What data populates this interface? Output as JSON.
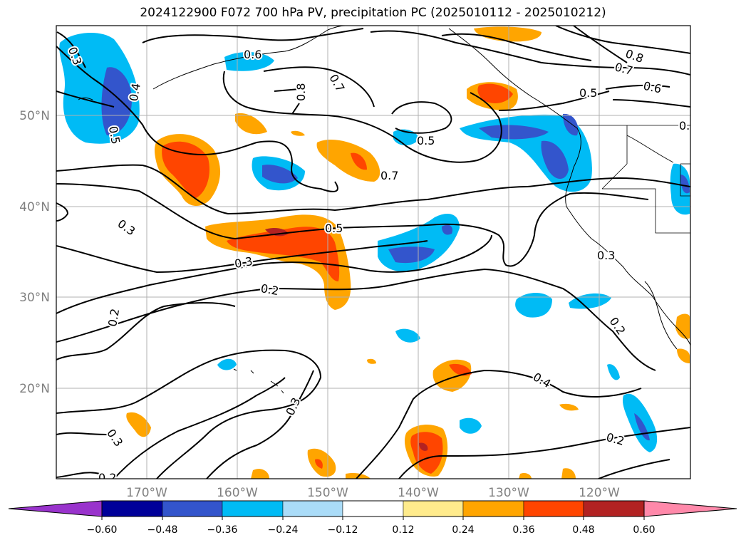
{
  "title": "2024122900 F072 700 hPa PV, precipitation PC (2025010112 - 2025010212)",
  "lat_labels": [
    "50°N",
    "40°N",
    "30°N",
    "20°N"
  ],
  "lon_labels": [
    "170°W",
    "160°W",
    "150°W",
    "140°W",
    "130°W",
    "120°W"
  ],
  "colorbar": {
    "colors": [
      "#9933cc",
      "#000099",
      "#3355cc",
      "#00bbf5",
      "#aadcf8",
      "#ffffff",
      "#ffeb8c",
      "#ffa500",
      "#ff4500",
      "#b22222",
      "#ff89aa"
    ],
    "ticks": [
      "−0.60",
      "−0.48",
      "−0.36",
      "−0.24",
      "−0.12",
      "0.12",
      "0.24",
      "0.36",
      "0.48",
      "0.60"
    ]
  },
  "contour_labels": {
    "l1": "0.3",
    "l2": "0.6",
    "l3": "0.4",
    "l4": "0.5",
    "l5": "0.8",
    "l6": "0.7",
    "l7": "0.5",
    "l8": "0.7",
    "l9": "0.8",
    "l10": "0.7",
    "l11": "0.6",
    "l12": "0.5",
    "l13": "0.",
    "l14": "0.3",
    "l15": "0.5",
    "l16": "0.3",
    "l17": "0.2",
    "l18": "0.3",
    "l19": "0.2",
    "l20": "0.2",
    "l21": "0.3",
    "l22": "0.4",
    "l23": "0.3",
    "l24": "0.2",
    "l25": "0.2"
  }
}
